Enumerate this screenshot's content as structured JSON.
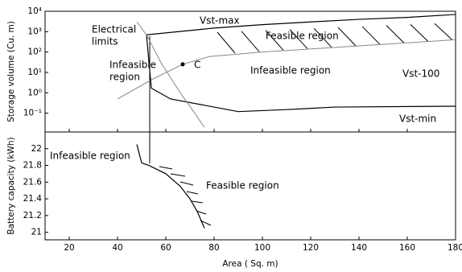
{
  "chart_data": [
    {
      "type": "line",
      "ylabel": "Storage volume (Cu. m)",
      "log_y": true,
      "xlim": [
        10,
        180
      ],
      "ylim": [
        0.012,
        10000
      ],
      "yticks": [
        {
          "value": 0.1,
          "label": "10⁻¹"
        },
        {
          "value": 1,
          "label": "10⁰"
        },
        {
          "value": 10,
          "label": "10¹"
        },
        {
          "value": 100,
          "label": "10²"
        },
        {
          "value": 1000,
          "label": "10³"
        },
        {
          "value": 10000,
          "label": "10⁴"
        }
      ],
      "series": [
        {
          "color": "#000000",
          "x": [
            52,
            80,
            100,
            120,
            140,
            160,
            180
          ],
          "values": [
            700,
            1500,
            2200,
            3000,
            4000,
            5000,
            7000
          ]
        },
        {
          "color": "#888888",
          "x": [
            40,
            55,
            67,
            78,
            100,
            140,
            180
          ],
          "values": [
            0.5,
            5,
            25,
            60,
            100,
            200,
            400
          ]
        },
        {
          "color": "#000000",
          "x": [
            52,
            54,
            62,
            80,
            90,
            110,
            130,
            180
          ],
          "values": [
            700,
            1.7,
            0.5,
            0.2,
            0.12,
            0.15,
            0.2,
            0.22
          ]
        },
        {
          "color": "#888888",
          "x": [
            48,
            52,
            58,
            66,
            72,
            76
          ],
          "values": [
            3000,
            700,
            30,
            1,
            0.1,
            0.02
          ]
        }
      ],
      "point": {
        "label": "C",
        "x": 67,
        "value": 25
      },
      "annotations": [
        [
          "Vst-max"
        ],
        [
          "Feasible region"
        ],
        [
          "Vst-100"
        ],
        [
          "Electrical",
          "limits"
        ],
        [
          "Infeasible",
          "region"
        ],
        [
          "Infeasible region"
        ],
        [
          "Vst-min"
        ]
      ]
    },
    {
      "type": "line",
      "ylabel": "Battery capacity (kWh)",
      "xlabel": "Area ( Sq. m)",
      "xlim": [
        10,
        180
      ],
      "ylim": [
        20.91,
        22.2
      ],
      "xticks": [
        20,
        40,
        60,
        80,
        100,
        120,
        140,
        160,
        180
      ],
      "yticks": [
        21,
        21.2,
        21.4,
        21.6,
        21.8,
        22
      ],
      "series": [
        {
          "color": "#000000",
          "x": [
            48,
            50,
            53,
            60,
            66,
            70,
            73,
            76
          ],
          "values": [
            22.05,
            21.83,
            21.8,
            21.7,
            21.55,
            21.4,
            21.25,
            21.05
          ]
        }
      ],
      "annotations": [
        [
          "Infeasible region"
        ],
        [
          "Feasible region"
        ]
      ]
    }
  ]
}
